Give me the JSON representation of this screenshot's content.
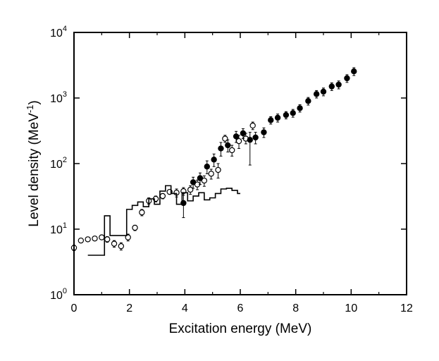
{
  "chart_data": {
    "type": "scatter",
    "xlabel": "Excitation energy (MeV)",
    "ylabel": "Level density (MeV",
    "ylabel_sup": "-1",
    "ylabel_end": ")",
    "xlim": [
      0,
      12
    ],
    "ylim": [
      1,
      10000
    ],
    "y_scale": "log",
    "grid": false,
    "legend": "none",
    "x_ticks": [
      0,
      2,
      4,
      6,
      8,
      10,
      12
    ],
    "x_tick_labels": [
      "0",
      "2",
      "4",
      "6",
      "8",
      "10",
      "12"
    ],
    "y_ticks": [
      1,
      10,
      100,
      1000,
      10000
    ],
    "y_tick_labels": [
      {
        "base": "10",
        "exp": "0"
      },
      {
        "base": "10",
        "exp": "1"
      },
      {
        "base": "10",
        "exp": "2"
      },
      {
        "base": "10",
        "exp": "3"
      },
      {
        "base": "10",
        "exp": "4"
      }
    ],
    "series": [
      {
        "marker": "open-circle",
        "x": [
          0.0,
          0.25,
          0.5,
          0.75,
          1.0,
          1.2,
          1.45,
          1.7,
          1.95,
          2.2,
          2.45,
          2.7,
          2.95,
          3.2,
          3.45,
          3.7,
          3.95,
          4.2,
          4.45,
          4.7,
          4.95,
          5.2,
          5.45,
          5.7,
          5.95,
          6.2,
          6.45
        ],
        "y": [
          5.2,
          6.7,
          7.0,
          7.2,
          7.5,
          7.0,
          6.0,
          5.5,
          7.5,
          10.5,
          18,
          27,
          29,
          32,
          37,
          36,
          38,
          40,
          48,
          55,
          70,
          80,
          240,
          160,
          220,
          240,
          380
        ],
        "yerr_low": [
          4.7,
          6.2,
          6.5,
          6.7,
          7.0,
          6.3,
          5.3,
          4.8,
          6.6,
          9.5,
          16,
          24,
          26,
          29,
          34,
          31,
          33,
          34,
          40,
          45,
          58,
          60,
          210,
          130,
          170,
          200,
          330
        ],
        "yerr_high": [
          5.7,
          7.2,
          7.5,
          7.7,
          8.0,
          7.7,
          6.7,
          6.2,
          8.4,
          11.5,
          20,
          30,
          32,
          35,
          40,
          41,
          43,
          46,
          56,
          65,
          82,
          100,
          270,
          190,
          270,
          290,
          430
        ]
      },
      {
        "marker": "filled-circle",
        "x": [
          3.95,
          4.3,
          4.55,
          4.8,
          5.05,
          5.3,
          5.55,
          5.85,
          6.1,
          6.35,
          6.55,
          6.85,
          7.1,
          7.35,
          7.65,
          7.9,
          8.15,
          8.45,
          8.75,
          9.0,
          9.3,
          9.55,
          9.85,
          10.1
        ],
        "y": [
          25,
          52,
          60,
          90,
          115,
          170,
          190,
          260,
          290,
          230,
          250,
          300,
          460,
          500,
          550,
          590,
          700,
          900,
          1150,
          1250,
          1500,
          1600,
          2000,
          2550
        ],
        "yerr_low": [
          15,
          42,
          48,
          70,
          90,
          130,
          150,
          210,
          240,
          95,
          200,
          250,
          400,
          430,
          480,
          510,
          610,
          780,
          1000,
          1080,
          1300,
          1380,
          1730,
          2200
        ],
        "yerr_high": [
          35,
          62,
          72,
          110,
          140,
          210,
          230,
          310,
          340,
          300,
          300,
          350,
          520,
          570,
          620,
          670,
          790,
          1020,
          1300,
          1420,
          1700,
          1820,
          2270,
          2900
        ]
      },
      {
        "marker": "step-line",
        "x": [
          0.5,
          1.1,
          1.1,
          1.3,
          1.5,
          1.9,
          2.1,
          2.3,
          2.5,
          2.7,
          2.9,
          3.1,
          3.3,
          3.5,
          3.7,
          3.9,
          4.1,
          4.3,
          4.5,
          4.7,
          4.9,
          5.1,
          5.3,
          5.5,
          5.7,
          5.9,
          6.0
        ],
        "y": [
          4,
          4,
          16,
          8,
          8,
          20,
          23,
          26,
          22,
          29,
          24,
          38,
          46,
          35,
          24,
          36,
          27,
          32,
          36,
          28,
          30,
          35,
          41,
          42,
          39,
          35,
          35
        ]
      }
    ]
  }
}
